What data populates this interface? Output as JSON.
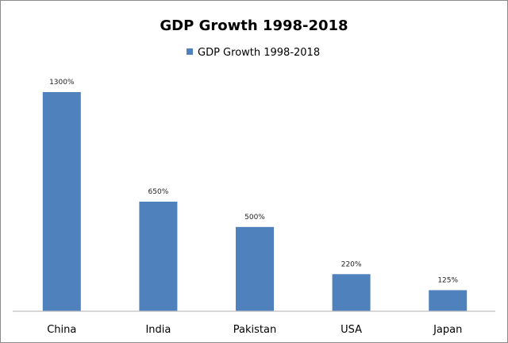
{
  "chart_data": {
    "type": "bar",
    "title": "GDP Growth 1998-2018",
    "legend": {
      "entries": [
        "GDP Growth 1998-2018"
      ],
      "placement": "top"
    },
    "categories": [
      "China",
      "India",
      "Pakistan",
      "USA",
      "Japan"
    ],
    "series": [
      {
        "name": "GDP Growth 1998-2018",
        "values": [
          1300,
          650,
          500,
          220,
          125
        ],
        "color": "#4f81bd"
      }
    ],
    "data_labels": [
      "1300%",
      "650%",
      "500%",
      "220%",
      "125%"
    ],
    "xlabel": "",
    "ylabel": "",
    "ylim": [
      0,
      1300
    ],
    "grid": false,
    "y_axis_visible": false
  }
}
